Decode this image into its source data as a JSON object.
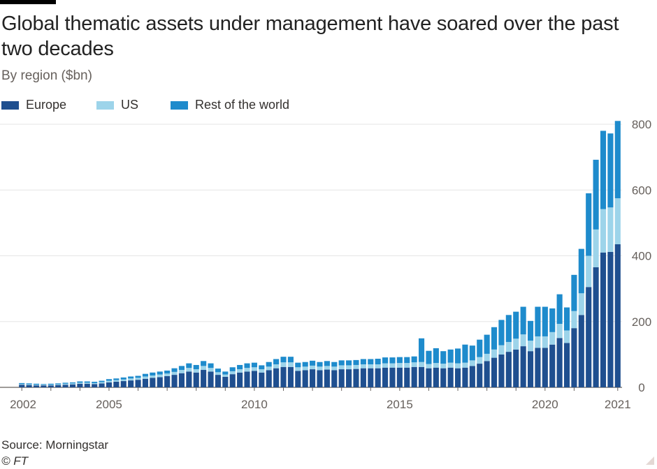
{
  "header": {
    "title": "Global thematic assets under management have soared over the past two decades",
    "subtitle": "By region ($bn)"
  },
  "footer": {
    "source": "Source: Morningstar",
    "copyright": "© FT"
  },
  "colors": {
    "europe": "#1f4f8f",
    "us": "#9dd4ea",
    "rest_of_world": "#1e8bcc",
    "grid": "#e6e6e6",
    "axis_text": "#66605c"
  },
  "chart_data": {
    "type": "bar",
    "stacked": true,
    "x_label_ticks": [
      "2002",
      "2005",
      "2010",
      "2015",
      "2020",
      "2021"
    ],
    "ylim": [
      0,
      800
    ],
    "yticks": [
      0,
      200,
      400,
      600,
      800
    ],
    "y_axis_position": "right",
    "grid": true,
    "legend_position": "top-left",
    "x_start": "2002 Q1",
    "frequency": "quarterly",
    "series": [
      {
        "name": "Europe",
        "values": [
          8,
          7,
          6,
          6,
          6,
          7,
          8,
          9,
          11,
          11,
          10,
          12,
          15,
          17,
          19,
          21,
          23,
          26,
          29,
          31,
          34,
          38,
          43,
          48,
          45,
          53,
          48,
          38,
          32,
          40,
          45,
          48,
          50,
          45,
          52,
          58,
          62,
          62,
          50,
          52,
          55,
          52,
          54,
          52,
          55,
          55,
          56,
          58,
          58,
          58,
          60,
          60,
          60,
          60,
          62,
          62,
          58,
          60,
          58,
          60,
          58,
          60,
          65,
          72,
          80,
          90,
          100,
          108,
          115,
          125,
          110,
          120,
          120,
          130,
          150,
          135,
          180,
          220,
          305,
          365,
          410,
          412,
          435
        ]
      },
      {
        "name": "US",
        "values": [
          2,
          2,
          2,
          2,
          2,
          2,
          3,
          3,
          3,
          3,
          3,
          4,
          5,
          5,
          5,
          6,
          6,
          7,
          7,
          8,
          8,
          9,
          10,
          11,
          10,
          12,
          11,
          8,
          7,
          9,
          10,
          11,
          11,
          10,
          11,
          12,
          14,
          14,
          11,
          11,
          11,
          11,
          11,
          11,
          12,
          12,
          12,
          12,
          12,
          12,
          13,
          13,
          14,
          14,
          14,
          15,
          13,
          14,
          14,
          15,
          15,
          15,
          17,
          20,
          22,
          25,
          28,
          30,
          33,
          36,
          32,
          35,
          35,
          38,
          43,
          38,
          52,
          66,
          95,
          115,
          132,
          135,
          140
        ]
      },
      {
        "name": "Rest of the world",
        "values": [
          3,
          3,
          3,
          2,
          3,
          3,
          3,
          3,
          4,
          4,
          4,
          4,
          5,
          5,
          6,
          6,
          6,
          8,
          9,
          9,
          9,
          11,
          12,
          14,
          13,
          15,
          14,
          11,
          9,
          12,
          13,
          14,
          14,
          12,
          14,
          16,
          17,
          17,
          14,
          14,
          15,
          14,
          15,
          14,
          15,
          15,
          15,
          16,
          16,
          17,
          18,
          18,
          18,
          18,
          18,
          72,
          40,
          45,
          38,
          40,
          45,
          55,
          45,
          53,
          58,
          68,
          77,
          82,
          82,
          84,
          60,
          90,
          90,
          72,
          90,
          70,
          110,
          135,
          190,
          212,
          238,
          225,
          235
        ]
      }
    ]
  }
}
